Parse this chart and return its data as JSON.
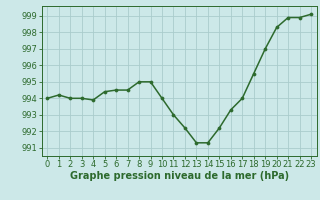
{
  "x": [
    0,
    1,
    2,
    3,
    4,
    5,
    6,
    7,
    8,
    9,
    10,
    11,
    12,
    13,
    14,
    15,
    16,
    17,
    18,
    19,
    20,
    21,
    22,
    23
  ],
  "y": [
    994.0,
    994.2,
    994.0,
    994.0,
    993.9,
    994.4,
    994.5,
    994.5,
    995.0,
    995.0,
    994.0,
    993.0,
    992.2,
    991.3,
    991.3,
    992.2,
    993.3,
    994.0,
    995.5,
    997.0,
    998.3,
    998.9,
    998.9,
    999.1
  ],
  "line_color": "#2d6a2d",
  "marker_color": "#2d6a2d",
  "bg_color": "#cce8e8",
  "grid_color": "#aacccc",
  "xlabel": "Graphe pression niveau de la mer (hPa)",
  "ylim": [
    990.5,
    999.6
  ],
  "yticks": [
    991,
    992,
    993,
    994,
    995,
    996,
    997,
    998,
    999
  ],
  "xticks": [
    0,
    1,
    2,
    3,
    4,
    5,
    6,
    7,
    8,
    9,
    10,
    11,
    12,
    13,
    14,
    15,
    16,
    17,
    18,
    19,
    20,
    21,
    22,
    23
  ],
  "xlabel_fontsize": 7.0,
  "tick_fontsize": 6.0,
  "line_width": 1.1,
  "marker_size": 2.2
}
